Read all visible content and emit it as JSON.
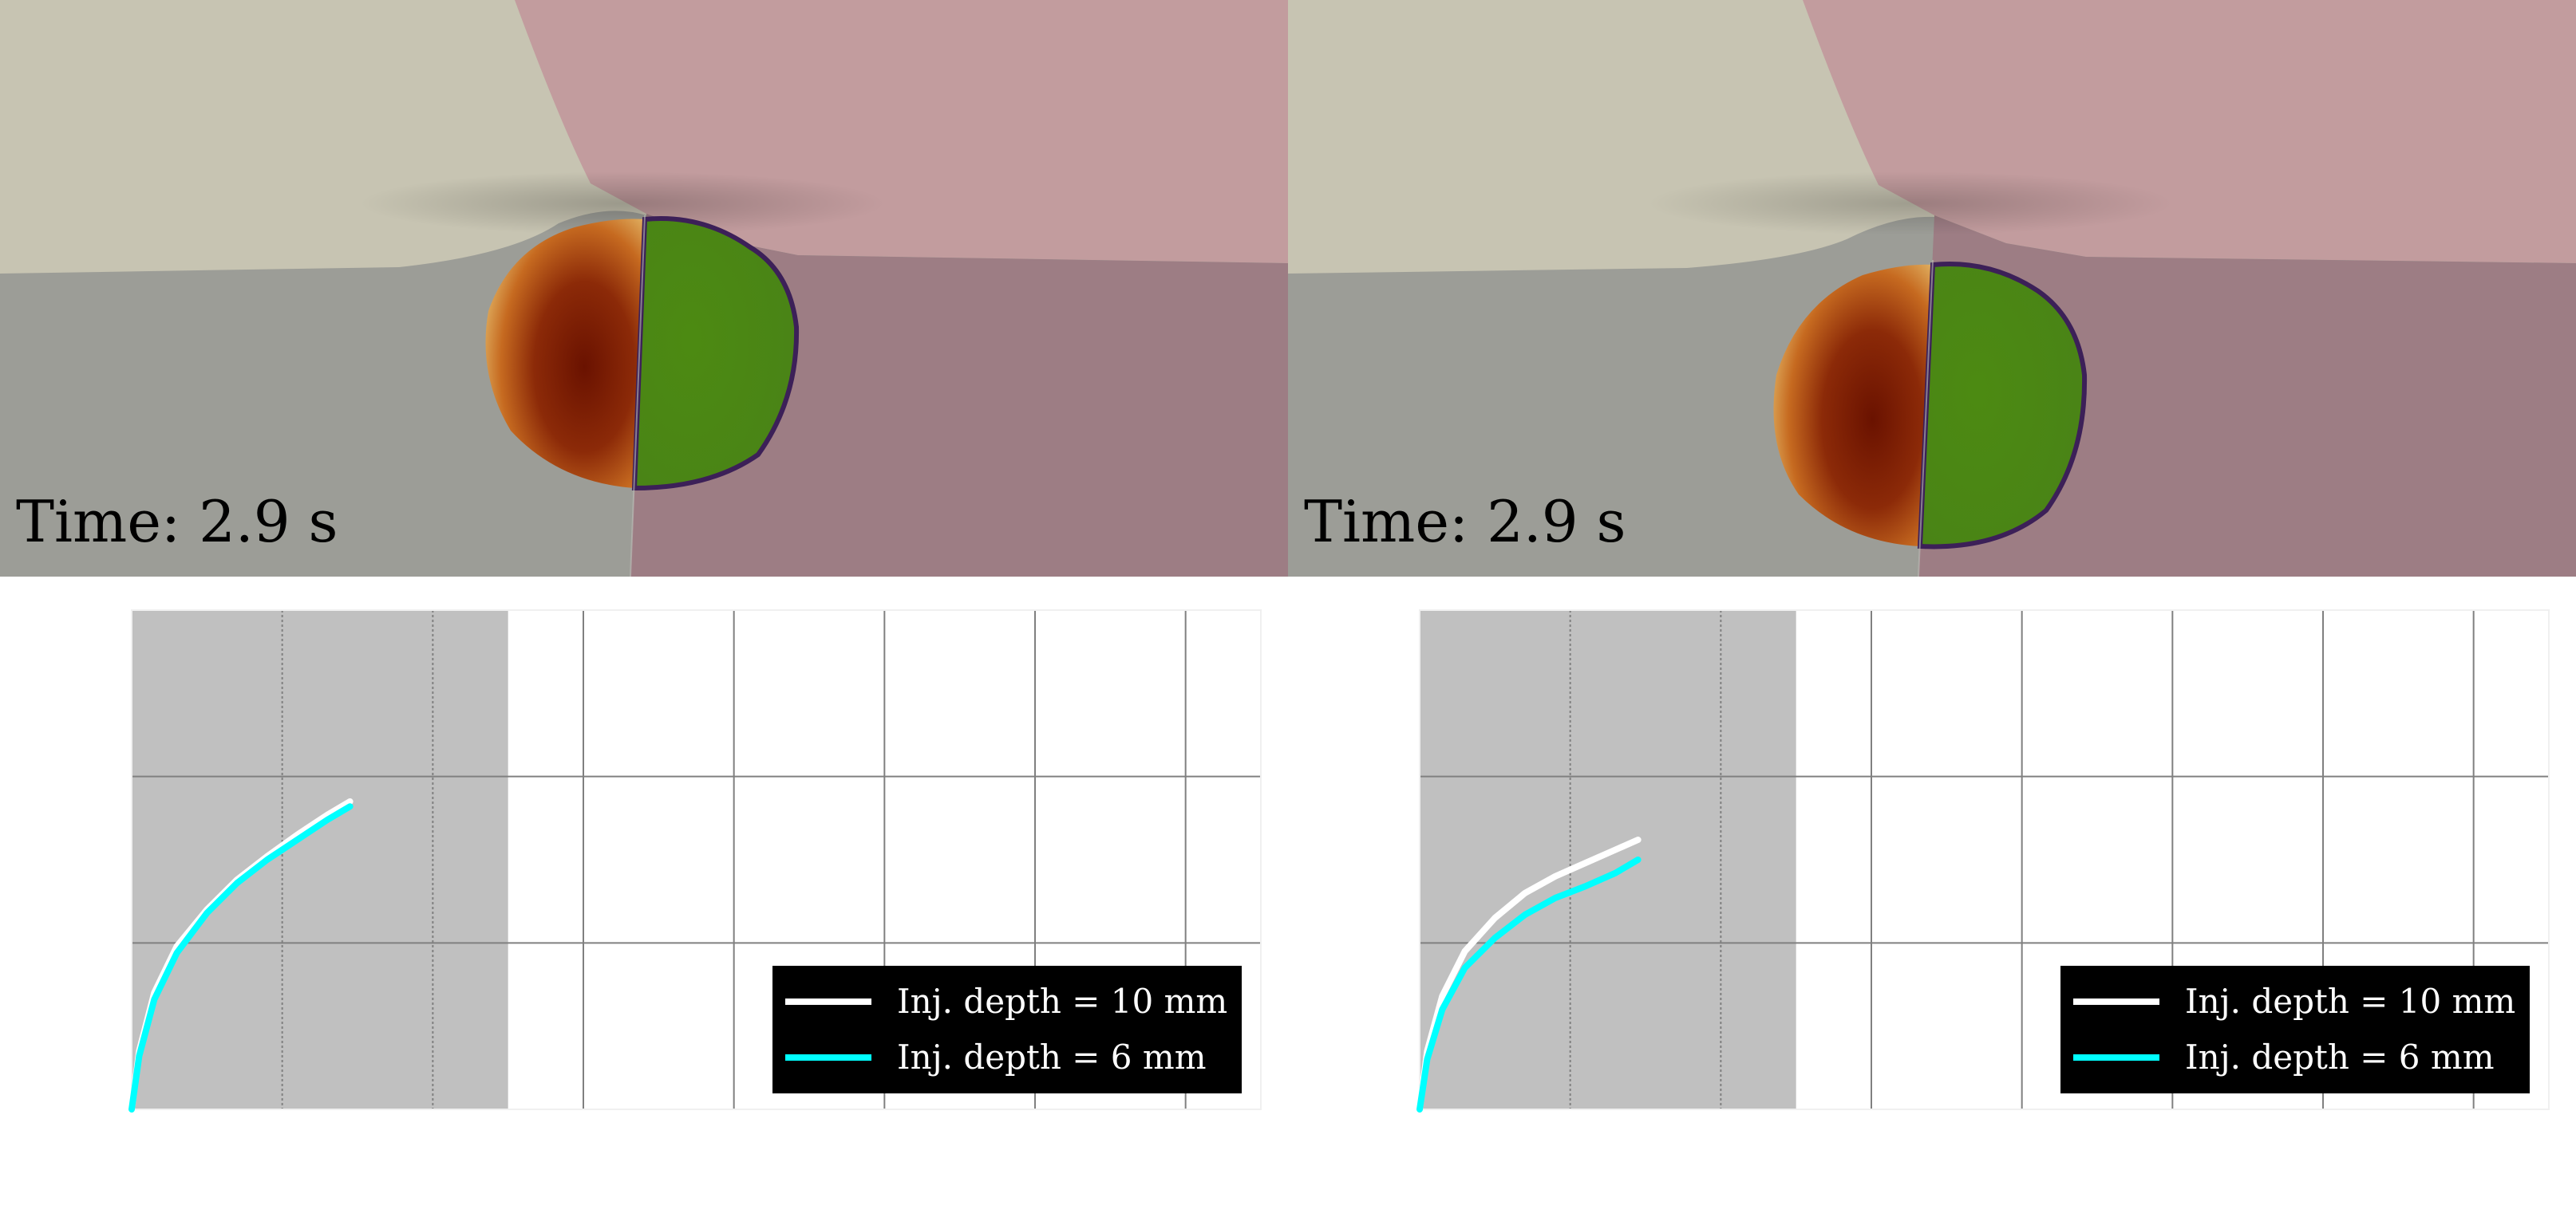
{
  "colors": {
    "fluid_left": "#c7c4b2",
    "fluid_right": "#c29c9e",
    "solid_left": "#9c9d97",
    "solid_right": "#9d7d84",
    "droplet_left_core": "#7c1a04",
    "droplet_left_mid": "#bc5a1a",
    "droplet_left_edge": "#e0b060",
    "droplet_right": "#4e8a15",
    "droplet_right_edge": "#3c2058",
    "shaded_region": "#c0c0c0",
    "grid": "#808080",
    "series_10mm": "#ffffff",
    "series_6mm": "#00ffff",
    "legend_bg": "#000000"
  },
  "panels": [
    {
      "time_label": "Time: 2.9 s",
      "legend": [
        {
          "label": "Inj. depth = 10 mm",
          "color": "#ffffff"
        },
        {
          "label": "Inj. depth = 6 mm",
          "color": "#00ffff"
        }
      ]
    },
    {
      "time_label": "Time: 2.9 s",
      "legend": [
        {
          "label": "Inj. depth = 10 mm",
          "color": "#ffffff"
        },
        {
          "label": "Inj. depth = 6 mm",
          "color": "#00ffff"
        }
      ]
    }
  ],
  "chart_data": [
    {
      "type": "line",
      "title": "",
      "xlabel": "",
      "ylabel": "",
      "xlim": [
        0,
        7.5
      ],
      "ylim": [
        0,
        3
      ],
      "shaded_x_range": [
        0,
        2.5
      ],
      "grid": true,
      "legend_position": "lower-right",
      "series": [
        {
          "name": "Inj. depth = 10 mm",
          "color": "#ffffff",
          "x": [
            0,
            0.05,
            0.15,
            0.3,
            0.5,
            0.7,
            0.9,
            1.1,
            1.3,
            1.45
          ],
          "y": [
            0,
            0.35,
            0.7,
            0.98,
            1.2,
            1.38,
            1.52,
            1.65,
            1.77,
            1.85
          ]
        },
        {
          "name": "Inj. depth = 6 mm",
          "color": "#00ffff",
          "x": [
            0,
            0.05,
            0.15,
            0.3,
            0.5,
            0.7,
            0.9,
            1.1,
            1.3,
            1.45
          ],
          "y": [
            0,
            0.32,
            0.66,
            0.94,
            1.18,
            1.36,
            1.5,
            1.62,
            1.74,
            1.82
          ]
        }
      ]
    },
    {
      "type": "line",
      "title": "",
      "xlabel": "",
      "ylabel": "",
      "xlim": [
        0,
        7.5
      ],
      "ylim": [
        0,
        3
      ],
      "shaded_x_range": [
        0,
        2.5
      ],
      "grid": true,
      "legend_position": "lower-right",
      "series": [
        {
          "name": "Inj. depth = 10 mm",
          "color": "#ffffff",
          "x": [
            0,
            0.05,
            0.15,
            0.3,
            0.5,
            0.7,
            0.9,
            1.1,
            1.3,
            1.45
          ],
          "y": [
            0,
            0.35,
            0.68,
            0.95,
            1.15,
            1.3,
            1.4,
            1.48,
            1.56,
            1.62
          ]
        },
        {
          "name": "Inj. depth = 6 mm",
          "color": "#00ffff",
          "x": [
            0,
            0.05,
            0.15,
            0.3,
            0.5,
            0.7,
            0.9,
            1.1,
            1.3,
            1.45
          ],
          "y": [
            0,
            0.3,
            0.6,
            0.85,
            1.03,
            1.17,
            1.27,
            1.34,
            1.42,
            1.5
          ]
        }
      ]
    }
  ]
}
